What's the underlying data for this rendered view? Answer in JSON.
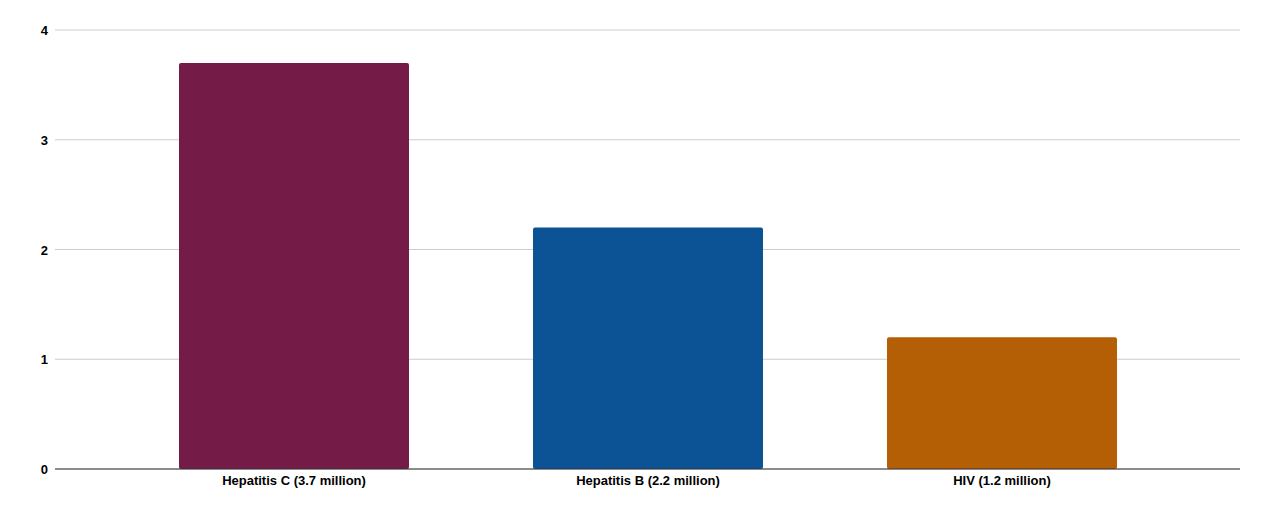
{
  "chart_data": {
    "type": "bar",
    "categories": [
      "Hepatitis C (3.7 million)",
      "Hepatitis B (2.2 million)",
      "HIV (1.2 million)"
    ],
    "values": [
      3.7,
      2.2,
      1.2
    ],
    "colors": [
      "#741b47",
      "#0b5394",
      "#b45f06"
    ],
    "ylim": [
      0,
      4
    ],
    "yticks": [
      0,
      1,
      2,
      3,
      4
    ],
    "grid": true
  }
}
